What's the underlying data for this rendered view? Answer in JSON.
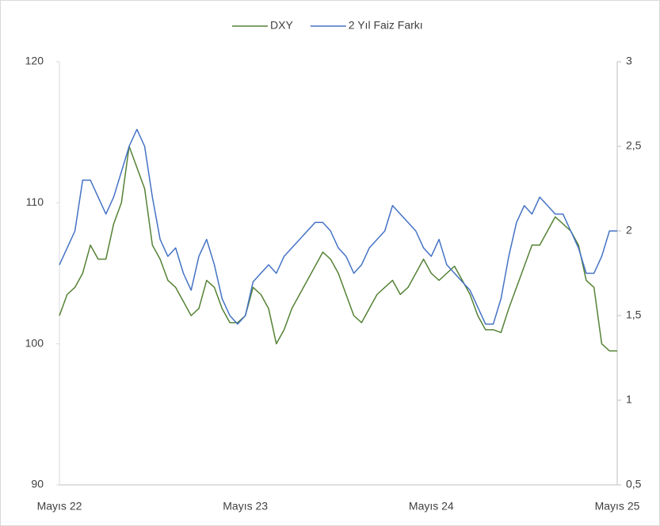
{
  "chart_data": {
    "type": "line",
    "categories": [
      "Mayıs 22",
      null,
      null,
      null,
      null,
      null,
      null,
      null,
      null,
      null,
      null,
      null,
      null,
      null,
      null,
      null,
      null,
      null,
      null,
      null,
      null,
      null,
      null,
      null,
      "Mayıs 23",
      null,
      null,
      null,
      null,
      null,
      null,
      null,
      null,
      null,
      null,
      null,
      null,
      null,
      null,
      null,
      null,
      null,
      null,
      null,
      null,
      null,
      null,
      null,
      "Mayıs 24",
      null,
      null,
      null,
      null,
      null,
      null,
      null,
      null,
      null,
      null,
      null,
      null,
      null,
      null,
      null,
      null,
      null,
      null,
      null,
      null,
      null,
      null,
      null,
      "Mayıs 25"
    ],
    "series": [
      {
        "name": "DXY",
        "color": "#548235",
        "values": [
          102,
          103.5,
          104,
          105,
          107,
          106,
          106,
          108.5,
          110,
          114,
          112.5,
          111,
          107,
          106,
          104.5,
          104,
          103,
          102,
          102.5,
          104.5,
          104,
          102.5,
          101.5,
          101.5,
          102,
          104,
          103.5,
          102.5,
          100,
          101,
          102.5,
          103.5,
          104.5,
          105.5,
          106.5,
          106,
          105,
          103.5,
          102,
          101.5,
          102.5,
          103.5,
          104,
          104.5,
          103.5,
          104,
          105,
          106,
          105,
          104.5,
          105,
          105.5,
          104.5,
          103.5,
          102,
          101,
          101,
          100.8,
          102.5,
          104,
          105.5,
          107,
          107,
          108,
          109,
          108.5,
          108,
          107,
          104.5,
          104,
          100,
          99.5,
          99.5
        ]
      },
      {
        "name": "2 Yıl Faiz Farkı",
        "color": "#4472c4",
        "axis": "y2",
        "values": [
          1.8,
          1.9,
          2.0,
          2.3,
          2.3,
          2.2,
          2.1,
          2.2,
          2.35,
          2.5,
          2.6,
          2.5,
          2.2,
          1.95,
          1.85,
          1.9,
          1.75,
          1.65,
          1.85,
          1.95,
          1.8,
          1.6,
          1.5,
          1.45,
          1.5,
          1.7,
          1.75,
          1.8,
          1.75,
          1.85,
          1.9,
          1.95,
          2.0,
          2.05,
          2.05,
          2.0,
          1.9,
          1.85,
          1.75,
          1.8,
          1.9,
          1.95,
          2.0,
          2.15,
          2.1,
          2.05,
          2.0,
          1.9,
          1.85,
          1.95,
          1.8,
          1.75,
          1.7,
          1.65,
          1.55,
          1.45,
          1.45,
          1.6,
          1.85,
          2.05,
          2.15,
          2.1,
          2.2,
          2.15,
          2.1,
          2.1,
          2.0,
          1.9,
          1.75,
          1.75,
          1.85,
          2.0,
          2.0
        ]
      }
    ],
    "ylim": [
      90,
      120
    ],
    "yticks": [
      90,
      100,
      110,
      120
    ],
    "y2lim": [
      0.5,
      3
    ],
    "y2ticks": [
      {
        "value": 0.5,
        "label": "0,5"
      },
      1,
      {
        "value": 1.5,
        "label": "1,5"
      },
      2,
      {
        "value": 2.5,
        "label": "2,5"
      },
      3
    ],
    "grid": false,
    "legend": "top"
  }
}
